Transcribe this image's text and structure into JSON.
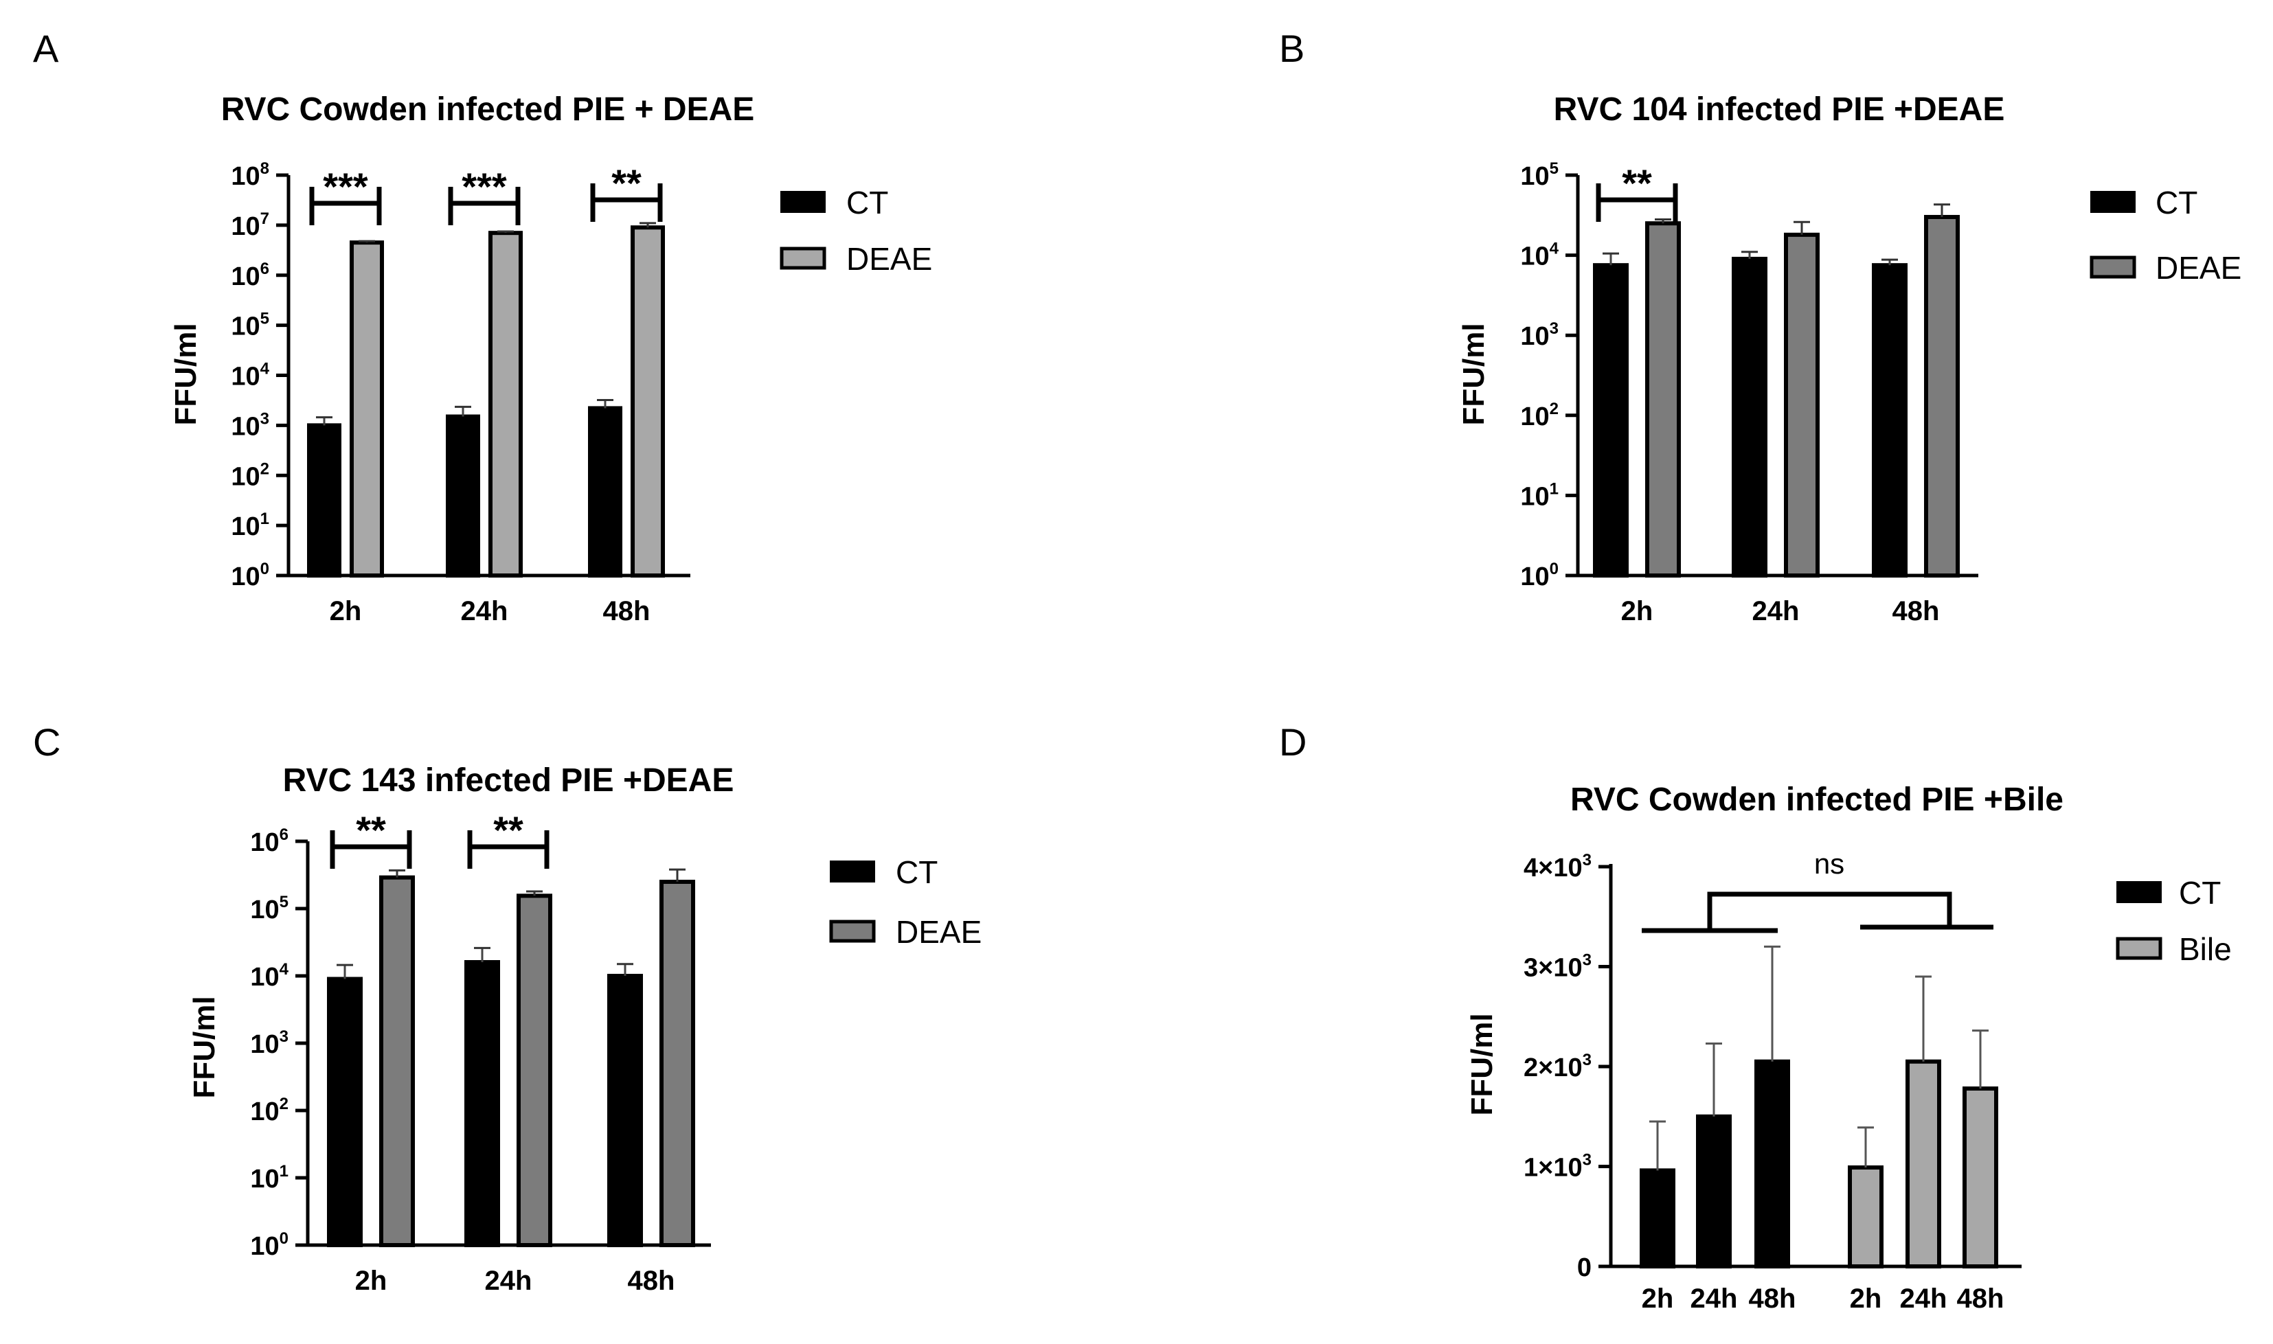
{
  "colors": {
    "ct_fill": "#000000",
    "deae_light_fill": "#a8a8a8",
    "deae_dark_fill": "#7c7c7c",
    "bile_fill": "#a8a8a8",
    "axis": "#000000",
    "error_bar": "#555555"
  },
  "chart_data": [
    {
      "panel": "A",
      "type": "bar",
      "title": "RVC Cowden infected PIE + DEAE",
      "ylabel": "FFU/ml",
      "xlabel": "",
      "scale": "log",
      "ylim": [
        1,
        100000000
      ],
      "yticks": [
        {
          "value": 1,
          "base": "10",
          "exp": "0"
        },
        {
          "value": 10,
          "base": "10",
          "exp": "1"
        },
        {
          "value": 100,
          "base": "10",
          "exp": "2"
        },
        {
          "value": 1000,
          "base": "10",
          "exp": "3"
        },
        {
          "value": 10000,
          "base": "10",
          "exp": "4"
        },
        {
          "value": 100000,
          "base": "10",
          "exp": "5"
        },
        {
          "value": 1000000,
          "base": "10",
          "exp": "6"
        },
        {
          "value": 10000000,
          "base": "10",
          "exp": "7"
        },
        {
          "value": 100000000,
          "base": "10",
          "exp": "8"
        }
      ],
      "categories": [
        "2h",
        "24h",
        "48h"
      ],
      "series": [
        {
          "name": "CT",
          "fill": "#000000",
          "values": [
            1000,
            1500,
            2200
          ],
          "err_upper": [
            1450,
            2350,
            3200
          ]
        },
        {
          "name": "DEAE",
          "fill": "#a8a8a8",
          "values": [
            4500000,
            7000000,
            9000000
          ],
          "err_upper": [
            4800000,
            7500000,
            11000000
          ]
        }
      ],
      "significance": [
        {
          "label": "***",
          "category": 0
        },
        {
          "label": "***",
          "category": 1
        },
        {
          "label": "**",
          "category": 2
        }
      ],
      "legend": "right"
    },
    {
      "panel": "B",
      "type": "bar",
      "title": "RVC 104 infected PIE +DEAE",
      "ylabel": "FFU/ml",
      "xlabel": "",
      "scale": "log",
      "ylim": [
        1,
        100000
      ],
      "yticks": [
        {
          "value": 1,
          "base": "10",
          "exp": "0"
        },
        {
          "value": 10,
          "base": "10",
          "exp": "1"
        },
        {
          "value": 100,
          "base": "10",
          "exp": "2"
        },
        {
          "value": 1000,
          "base": "10",
          "exp": "3"
        },
        {
          "value": 10000,
          "base": "10",
          "exp": "4"
        },
        {
          "value": 100000,
          "base": "10",
          "exp": "5"
        }
      ],
      "categories": [
        "2h",
        "24h",
        "48h"
      ],
      "series": [
        {
          "name": "CT",
          "fill": "#000000",
          "values": [
            7500,
            9000,
            7500
          ],
          "err_upper": [
            10500,
            11000,
            8800
          ]
        },
        {
          "name": "DEAE",
          "fill": "#7c7c7c",
          "values": [
            25000,
            18000,
            30000
          ],
          "err_upper": [
            28000,
            26000,
            43000
          ]
        }
      ],
      "significance": [
        {
          "label": "**",
          "category": 0
        }
      ],
      "legend": "right"
    },
    {
      "panel": "C",
      "type": "bar",
      "title": "RVC 143 infected PIE +DEAE",
      "ylabel": "FFU/ml",
      "xlabel": "",
      "scale": "log",
      "ylim": [
        1,
        1000000
      ],
      "yticks": [
        {
          "value": 1,
          "base": "10",
          "exp": "0"
        },
        {
          "value": 10,
          "base": "10",
          "exp": "1"
        },
        {
          "value": 100,
          "base": "10",
          "exp": "2"
        },
        {
          "value": 1000,
          "base": "10",
          "exp": "3"
        },
        {
          "value": 10000,
          "base": "10",
          "exp": "4"
        },
        {
          "value": 100000,
          "base": "10",
          "exp": "5"
        },
        {
          "value": 1000000,
          "base": "10",
          "exp": "6"
        }
      ],
      "categories": [
        "2h",
        "24h",
        "48h"
      ],
      "series": [
        {
          "name": "CT",
          "fill": "#000000",
          "values": [
            9000,
            16000,
            10000
          ],
          "err_upper": [
            14500,
            26000,
            15000
          ]
        },
        {
          "name": "DEAE",
          "fill": "#7c7c7c",
          "values": [
            290000,
            155000,
            250000
          ],
          "err_upper": [
            370000,
            180000,
            380000
          ]
        }
      ],
      "significance": [
        {
          "label": "**",
          "category": 0
        },
        {
          "label": "**",
          "category": 1
        }
      ],
      "legend": "right"
    },
    {
      "panel": "D",
      "type": "bar",
      "title": "RVC Cowden infected  PIE +Bile",
      "ylabel": "FFU/ml",
      "xlabel": "",
      "scale": "linear",
      "ylim": [
        0,
        4000
      ],
      "yticks": [
        {
          "value": 0,
          "text": "0"
        },
        {
          "value": 1000,
          "text": "1×10",
          "exp": "3"
        },
        {
          "value": 2000,
          "text": "2×10",
          "exp": "3"
        },
        {
          "value": 3000,
          "text": "3×10",
          "exp": "3"
        },
        {
          "value": 4000,
          "text": "4×10",
          "exp": "3"
        }
      ],
      "groups": [
        {
          "name": "CT",
          "fill": "#000000",
          "categories": [
            "2h",
            "24h",
            "48h"
          ],
          "values": [
            960,
            1500,
            2050
          ],
          "err_upper": [
            1450,
            2230,
            3200
          ]
        },
        {
          "name": "Bile",
          "fill": "#a8a8a8",
          "categories": [
            "2h",
            "24h",
            "48h"
          ],
          "values": [
            990,
            2050,
            1780
          ],
          "err_upper": [
            1390,
            2900,
            2360
          ]
        }
      ],
      "significance": [
        {
          "label": "ns",
          "between": [
            "CT",
            "Bile"
          ]
        }
      ],
      "legend": "right"
    }
  ],
  "panels": [
    {
      "letter": "A",
      "legend": [
        {
          "label": "CT"
        },
        {
          "label": "DEAE"
        }
      ]
    },
    {
      "letter": "B",
      "legend": [
        {
          "label": "CT"
        },
        {
          "label": "DEAE"
        }
      ]
    },
    {
      "letter": "C",
      "legend": [
        {
          "label": "CT"
        },
        {
          "label": "DEAE"
        }
      ]
    },
    {
      "letter": "D",
      "legend": [
        {
          "label": "CT"
        },
        {
          "label": "Bile"
        }
      ]
    }
  ]
}
